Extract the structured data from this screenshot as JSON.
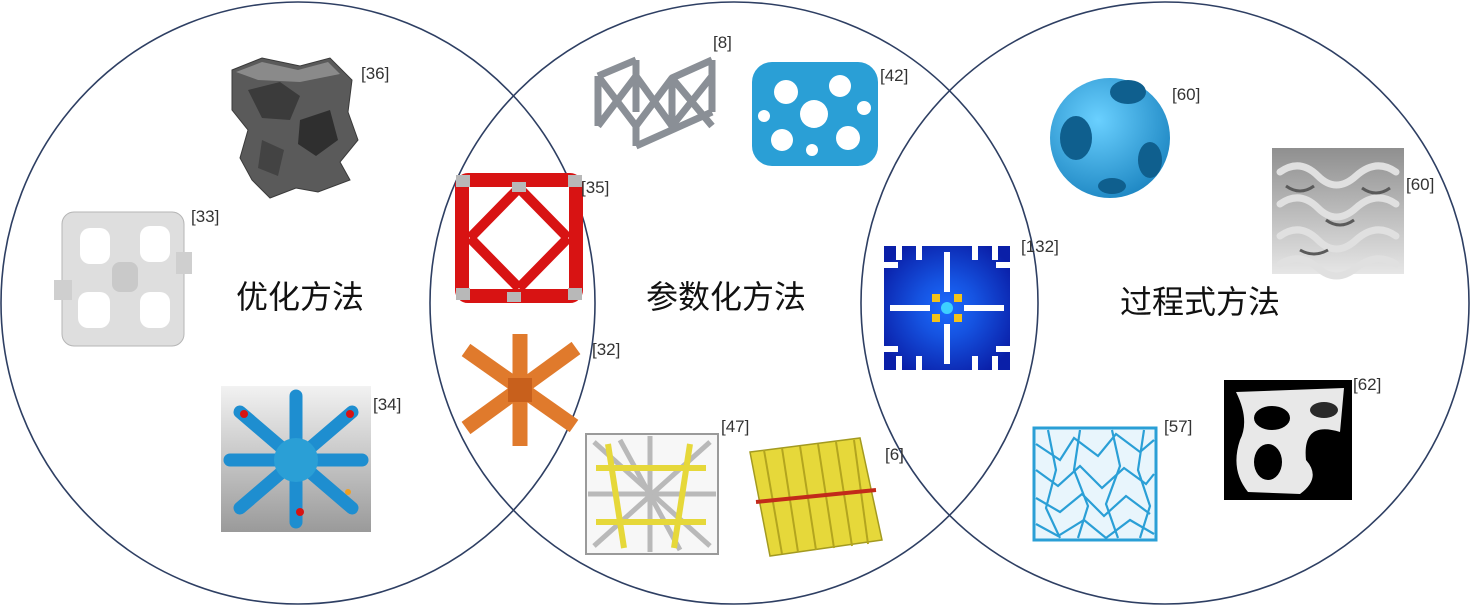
{
  "diagram": {
    "categories": {
      "optimization": "优化方法",
      "parametric": "参数化方法",
      "procedural": "过程式方法"
    },
    "refs": {
      "r36": "[36]",
      "r33": "[33]",
      "r34": "[34]",
      "r35": "[35]",
      "r32": "[32]",
      "r8": "[8]",
      "r42": "[42]",
      "r47": "[47]",
      "r6": "[6]",
      "r132": "[132]",
      "r60a": "[60]",
      "r60b": "[60]",
      "r57": "[57]",
      "r62": "[62]"
    },
    "colors": {
      "circle_stroke": "#2e3f63",
      "blue_structure": "#2a9fd6",
      "red_structure": "#d81313",
      "orange_structure": "#e07a2c",
      "yellow_structure": "#e6d83a",
      "grey_structure": "#8a8f96"
    }
  }
}
